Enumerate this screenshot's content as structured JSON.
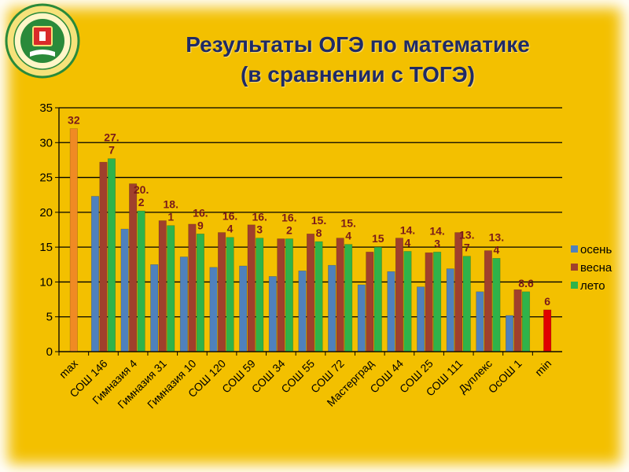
{
  "header": {
    "title_line1": "Результаты ОГЭ по математике",
    "title_line2": "(в сравнении с ТОГЭ)"
  },
  "emblem": {
    "icon": "department-emblem-icon",
    "text": "Администрация города Тюмени · Департамент образования"
  },
  "colors": {
    "background": "#f3c000",
    "title": "#1f2a66",
    "series_autumn": "#4f81bd",
    "series_spring": "#a0402c",
    "series_summer": "#2fb34a",
    "max_bar": "#f08a24",
    "min_bar": "#e00000"
  },
  "chart_data": {
    "type": "bar",
    "categories": [
      "max",
      "СОШ 146",
      "Гимназия 4",
      "Гимназия 31",
      "Гимназия 10",
      "СОШ 120",
      "СОШ 59",
      "СОШ 34",
      "СОШ 55",
      "СОШ 72",
      "Мастерград",
      "СОШ 44",
      "СОШ 25",
      "СОШ 111",
      "Дуплекс",
      "ОсОШ 1",
      "min"
    ],
    "series": [
      {
        "name": "осень",
        "color": "#4f81bd",
        "values": [
          null,
          22.3,
          17.6,
          12.5,
          13.6,
          12.1,
          12.3,
          10.8,
          11.6,
          12.4,
          9.6,
          11.5,
          9.3,
          11.9,
          8.6,
          5.2,
          null
        ]
      },
      {
        "name": "весна",
        "color": "#a0402c",
        "values": [
          null,
          27.2,
          24.1,
          18.8,
          18.3,
          17.1,
          18.2,
          16.2,
          16.9,
          16.3,
          14.3,
          16.3,
          14.2,
          17.1,
          14.5,
          8.9,
          null
        ]
      },
      {
        "name": "лето",
        "color": "#2fb34a",
        "values": [
          null,
          27.7,
          20.2,
          18.1,
          16.9,
          16.4,
          16.3,
          16.2,
          15.8,
          15.4,
          15,
          14.4,
          14.3,
          13.7,
          13.4,
          8.6,
          null
        ]
      },
      {
        "name": "",
        "color": "#f08a24",
        "values": [
          32,
          null,
          null,
          null,
          null,
          null,
          null,
          null,
          null,
          null,
          null,
          null,
          null,
          null,
          null,
          null,
          null
        ]
      },
      {
        "name": "",
        "color": "#e00000",
        "values": [
          null,
          null,
          null,
          null,
          null,
          null,
          null,
          null,
          null,
          null,
          null,
          null,
          null,
          null,
          null,
          null,
          6
        ]
      }
    ],
    "data_labels": [
      {
        "category": "max",
        "series": 3,
        "text": [
          "32"
        ]
      },
      {
        "category": "СОШ 146",
        "series": 2,
        "text": [
          "27.",
          "7"
        ]
      },
      {
        "category": "Гимназия 4",
        "series": 2,
        "text": [
          "20.",
          "2"
        ]
      },
      {
        "category": "Гимназия 31",
        "series": 2,
        "text": [
          "18.",
          "1"
        ]
      },
      {
        "category": "Гимназия 10",
        "series": 2,
        "text": [
          "16.",
          "9"
        ]
      },
      {
        "category": "СОШ 120",
        "series": 2,
        "text": [
          "16.",
          "4"
        ]
      },
      {
        "category": "СОШ 59",
        "series": 2,
        "text": [
          "16.",
          "3"
        ]
      },
      {
        "category": "СОШ 34",
        "series": 2,
        "text": [
          "16.",
          "2"
        ]
      },
      {
        "category": "СОШ 55",
        "series": 2,
        "text": [
          "15.",
          "8"
        ]
      },
      {
        "category": "СОШ 72",
        "series": 2,
        "text": [
          "15.",
          "4"
        ]
      },
      {
        "category": "Мастерград",
        "series": 2,
        "text": [
          "15"
        ]
      },
      {
        "category": "СОШ 44",
        "series": 2,
        "text": [
          "14.",
          "4"
        ]
      },
      {
        "category": "СОШ 25",
        "series": 2,
        "text": [
          "14.",
          "3"
        ]
      },
      {
        "category": "СОШ 111",
        "series": 2,
        "text": [
          "13.",
          "7"
        ]
      },
      {
        "category": "Дуплекс",
        "series": 2,
        "text": [
          "13.",
          "4"
        ]
      },
      {
        "category": "ОсОШ 1",
        "series": 2,
        "text": [
          "8.6"
        ]
      },
      {
        "category": "min",
        "series": 4,
        "text": [
          "6"
        ]
      }
    ],
    "legend": [
      "осень",
      "весна",
      "лето"
    ],
    "legend_position": "right",
    "ylim": [
      0,
      35
    ],
    "yticks": [
      0,
      5,
      10,
      15,
      20,
      25,
      30,
      35
    ],
    "grid": true,
    "title": "Результаты ОГЭ по математике (в сравнении с ТОГЭ)",
    "xlabel": "",
    "ylabel": ""
  }
}
